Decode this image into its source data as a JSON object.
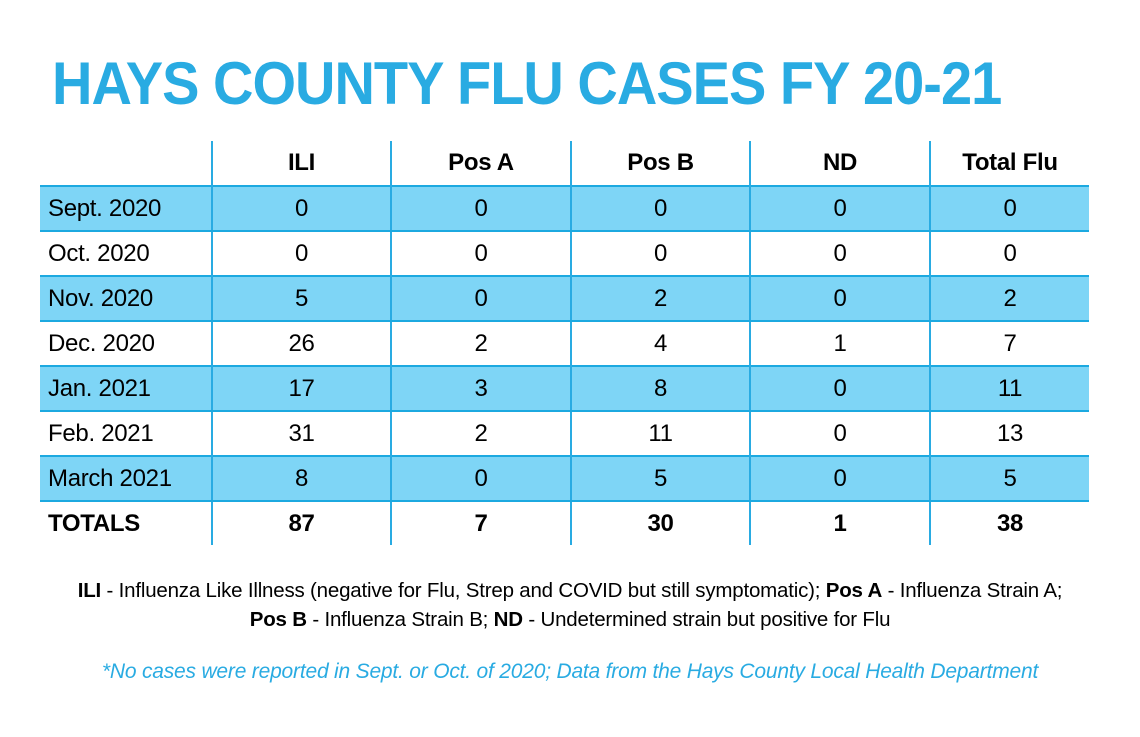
{
  "title": "HAYS COUNTY FLU CASES FY 20-21",
  "colors": {
    "accent_blue": "#29ABE2",
    "row_highlight_blue": "#7ED5F6",
    "grid_line_blue": "#1CA9E0",
    "text_black": "#000000"
  },
  "table": {
    "columns": [
      "",
      "ILI",
      "Pos A",
      "Pos B",
      "ND",
      "Total Flu"
    ],
    "rows": [
      {
        "label": "Sept. 2020",
        "values": [
          "0",
          "0",
          "0",
          "0",
          "0"
        ]
      },
      {
        "label": "Oct. 2020",
        "values": [
          "0",
          "0",
          "0",
          "0",
          "0"
        ]
      },
      {
        "label": "Nov. 2020",
        "values": [
          "5",
          "0",
          "2",
          "0",
          "2"
        ]
      },
      {
        "label": "Dec. 2020",
        "values": [
          "26",
          "2",
          "4",
          "1",
          "7"
        ]
      },
      {
        "label": "Jan. 2021",
        "values": [
          "17",
          "3",
          "8",
          "0",
          "11"
        ]
      },
      {
        "label": "Feb. 2021",
        "values": [
          "31",
          "2",
          "11",
          "0",
          "13"
        ]
      },
      {
        "label": "March 2021",
        "values": [
          "8",
          "0",
          "5",
          "0",
          "5"
        ]
      },
      {
        "label": "TOTALS",
        "values": [
          "87",
          "7",
          "30",
          "1",
          "38"
        ]
      }
    ]
  },
  "legend": {
    "line1": [
      {
        "text": "ILI"
      },
      {
        "text": " - Influenza Like Illness (negative for Flu, Strep and COVID but still symptomatic); "
      },
      {
        "text": "Pos A"
      },
      {
        "text": " - Influenza Strain A;"
      }
    ],
    "line2": [
      {
        "text": "Pos B"
      },
      {
        "text": " - Influenza Strain B; "
      },
      {
        "text": "ND"
      },
      {
        "text": " - Undetermined strain but positive for Flu"
      }
    ]
  },
  "footnote": "*No cases were reported in Sept. or Oct. of 2020; Data from the Hays County Local Health Department",
  "chart_data": {
    "type": "table",
    "title": "HAYS COUNTY FLU CASES FY 20-21",
    "columns": [
      "ILI",
      "Pos A",
      "Pos B",
      "ND",
      "Total Flu"
    ],
    "rows": [
      {
        "label": "Sept. 2020",
        "values": [
          0,
          0,
          0,
          0,
          0
        ]
      },
      {
        "label": "Oct. 2020",
        "values": [
          0,
          0,
          0,
          0,
          0
        ]
      },
      {
        "label": "Nov. 2020",
        "values": [
          5,
          0,
          2,
          0,
          2
        ]
      },
      {
        "label": "Dec. 2020",
        "values": [
          26,
          2,
          4,
          1,
          7
        ]
      },
      {
        "label": "Jan. 2021",
        "values": [
          17,
          3,
          8,
          0,
          11
        ]
      },
      {
        "label": "Feb. 2021",
        "values": [
          31,
          2,
          11,
          0,
          13
        ]
      },
      {
        "label": "March 2021",
        "values": [
          8,
          0,
          5,
          0,
          5
        ]
      },
      {
        "label": "TOTALS",
        "values": [
          87,
          7,
          30,
          1,
          38
        ]
      }
    ],
    "notes": [
      "ILI - Influenza Like Illness (negative for Flu, Strep and COVID but still symptomatic)",
      "Pos A - Influenza Strain A",
      "Pos B - Influenza Strain B",
      "ND - Undetermined strain but positive for Flu",
      "*No cases were reported in Sept. or Oct. of 2020; Data from the Hays County Local Health Department"
    ]
  }
}
